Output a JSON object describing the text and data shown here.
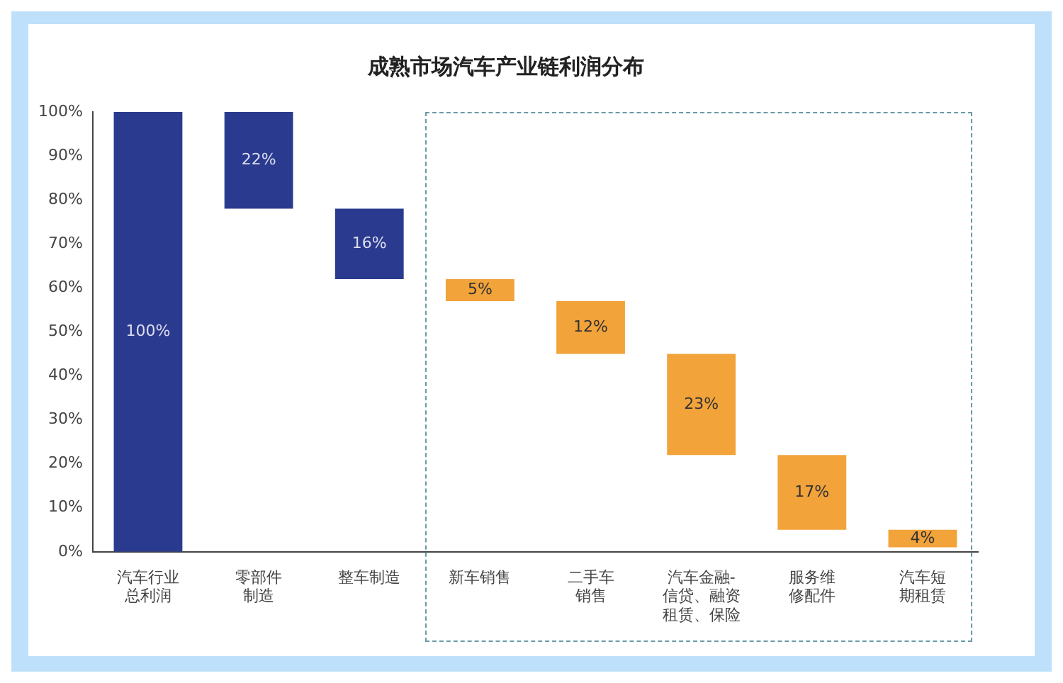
{
  "chart_data": {
    "type": "bar",
    "title": "成熟市场汽车产业链利润分布",
    "categories": [
      "汽车行业总利润",
      "零部件制造",
      "整车制造",
      "新车销售",
      "二手车销售",
      "汽车金融-信贷、融资租赁、保险",
      "服务维修配件",
      "汽车短期租赁"
    ],
    "values": [
      100,
      22,
      16,
      5,
      12,
      23,
      17,
      4
    ],
    "base": [
      0,
      78,
      62,
      57,
      45,
      22,
      5,
      1
    ],
    "colors": [
      "#2a3b8f",
      "#2a3b8f",
      "#2a3b8f",
      "#f2a33a",
      "#f2a33a",
      "#f2a33a",
      "#f2a33a",
      "#f2a33a"
    ],
    "value_labels": [
      "100%",
      "22%",
      "16%",
      "5%",
      "12%",
      "23%",
      "17%",
      "4%"
    ],
    "ylim": [
      0,
      100
    ],
    "yticks": [
      {
        "value": 0,
        "label": "0%"
      },
      {
        "value": 10,
        "label": "10%"
      },
      {
        "value": 20,
        "label": "20%"
      },
      {
        "value": 30,
        "label": "30%"
      },
      {
        "value": 40,
        "label": "40%"
      },
      {
        "value": 50,
        "label": "50%"
      },
      {
        "value": 60,
        "label": "60%"
      },
      {
        "value": 70,
        "label": "70%"
      },
      {
        "value": 80,
        "label": "80%"
      },
      {
        "value": 90,
        "label": "90%"
      },
      {
        "value": 100,
        "label": "100%"
      }
    ],
    "grid": false,
    "legend": false
  }
}
